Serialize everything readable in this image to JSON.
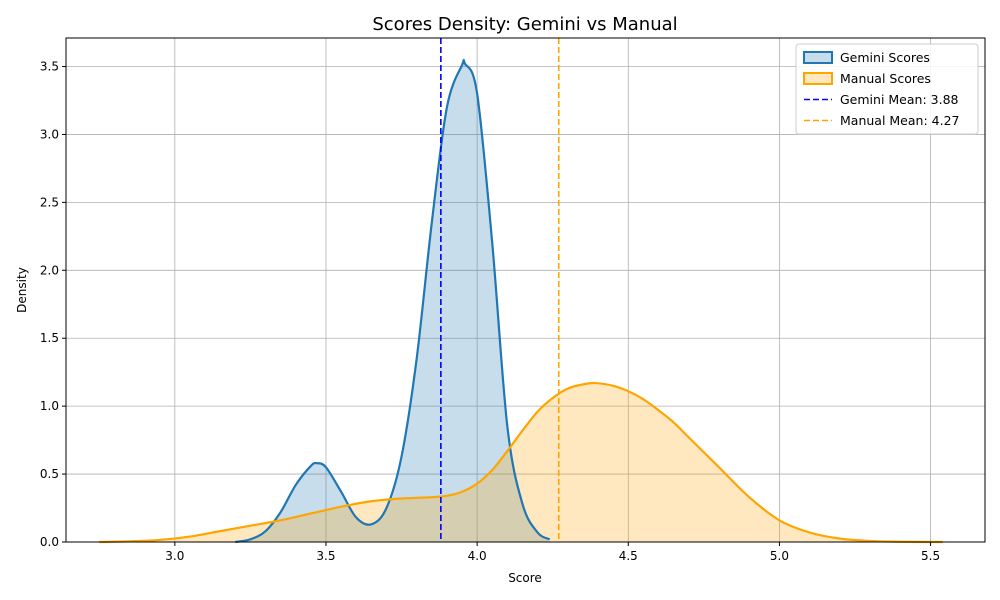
{
  "chart_data": {
    "type": "area",
    "title": "Scores Density: Gemini vs Manual",
    "xlabel": "Score",
    "ylabel": "Density",
    "xlim": [
      2.64,
      5.68
    ],
    "ylim": [
      0,
      3.71
    ],
    "xticks": [
      3.0,
      3.5,
      4.0,
      4.5,
      5.0,
      5.5
    ],
    "yticks": [
      0.0,
      0.5,
      1.0,
      1.5,
      2.0,
      2.5,
      3.0,
      3.5
    ],
    "grid": true,
    "legend_position": "top-right",
    "series": [
      {
        "name": "Gemini Scores",
        "line_color": "#1f77b4",
        "fill_color": "#1f77b4",
        "x": [
          3.2,
          3.25,
          3.3,
          3.35,
          3.4,
          3.45,
          3.47,
          3.5,
          3.55,
          3.6,
          3.65,
          3.7,
          3.75,
          3.8,
          3.85,
          3.9,
          3.95,
          3.96,
          4.0,
          4.05,
          4.1,
          4.15,
          4.2,
          4.24
        ],
        "y": [
          0.0,
          0.02,
          0.08,
          0.22,
          0.42,
          0.56,
          0.58,
          0.55,
          0.37,
          0.18,
          0.13,
          0.25,
          0.63,
          1.35,
          2.35,
          3.2,
          3.51,
          3.52,
          3.3,
          2.2,
          0.85,
          0.28,
          0.07,
          0.02
        ]
      },
      {
        "name": "Manual Scores",
        "line_color": "#ffa500",
        "fill_color": "#ffa500",
        "x": [
          2.75,
          2.85,
          2.95,
          3.05,
          3.15,
          3.25,
          3.35,
          3.45,
          3.55,
          3.65,
          3.75,
          3.85,
          3.9,
          3.95,
          4.0,
          4.05,
          4.1,
          4.15,
          4.2,
          4.25,
          4.3,
          4.35,
          4.39,
          4.45,
          4.5,
          4.55,
          4.6,
          4.65,
          4.7,
          4.8,
          4.9,
          5.0,
          5.1,
          5.2,
          5.3,
          5.4,
          5.54
        ],
        "y": [
          0.0,
          0.005,
          0.015,
          0.04,
          0.08,
          0.12,
          0.16,
          0.21,
          0.26,
          0.3,
          0.32,
          0.33,
          0.34,
          0.37,
          0.43,
          0.53,
          0.67,
          0.82,
          0.96,
          1.06,
          1.13,
          1.16,
          1.17,
          1.15,
          1.11,
          1.05,
          0.97,
          0.88,
          0.77,
          0.55,
          0.33,
          0.16,
          0.07,
          0.025,
          0.008,
          0.002,
          0.0
        ]
      }
    ],
    "mean_lines": [
      {
        "name": "Gemini Mean: 3.88",
        "x": 3.88,
        "color": "#0000ff",
        "dash": "dashed"
      },
      {
        "name": "Manual Mean: 4.27",
        "x": 4.27,
        "color": "#ffa500",
        "dash": "dashed"
      }
    ]
  }
}
